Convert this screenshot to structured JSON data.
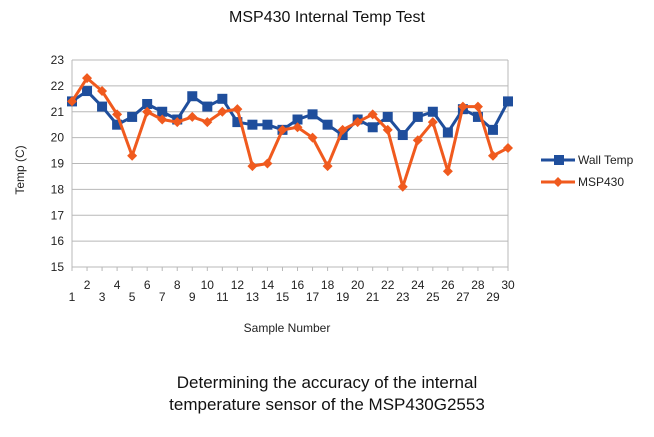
{
  "chart_data": {
    "type": "line",
    "title": "MSP430 Internal Temp Test",
    "xlabel": "Sample Number",
    "ylabel": "Temp (C)",
    "x": [
      1,
      2,
      3,
      4,
      5,
      6,
      7,
      8,
      9,
      10,
      11,
      12,
      13,
      14,
      15,
      16,
      17,
      18,
      19,
      20,
      21,
      22,
      23,
      24,
      25,
      26,
      27,
      28,
      29,
      30
    ],
    "xlim": [
      1,
      30
    ],
    "ylim": [
      15,
      23
    ],
    "yticks": [
      15,
      16,
      17,
      18,
      19,
      20,
      21,
      22,
      23
    ],
    "grid": "horizontal",
    "legend_position": "right",
    "series": [
      {
        "name": "Wall Temp",
        "color": "#1f4e9c",
        "marker": "square",
        "values": [
          21.4,
          21.8,
          21.2,
          20.5,
          20.8,
          21.3,
          21.0,
          20.7,
          21.6,
          21.2,
          21.5,
          20.6,
          20.5,
          20.5,
          20.3,
          20.7,
          20.9,
          20.5,
          20.1,
          20.7,
          20.4,
          20.8,
          20.1,
          20.8,
          21.0,
          20.2,
          21.1,
          20.8,
          20.3,
          21.4
        ]
      },
      {
        "name": "MSP430",
        "color": "#f05a1e",
        "marker": "diamond",
        "values": [
          21.4,
          22.3,
          21.8,
          20.9,
          19.3,
          21.0,
          20.7,
          20.6,
          20.8,
          20.6,
          21.0,
          21.1,
          18.9,
          19.0,
          20.3,
          20.4,
          20.0,
          18.9,
          20.3,
          20.6,
          20.9,
          20.3,
          18.1,
          19.9,
          20.6,
          18.7,
          21.2,
          21.2,
          19.3,
          19.6
        ]
      }
    ]
  },
  "caption": {
    "line1": "Determining the accuracy of the internal",
    "line2": "temperature sensor of the MSP430G2553"
  }
}
